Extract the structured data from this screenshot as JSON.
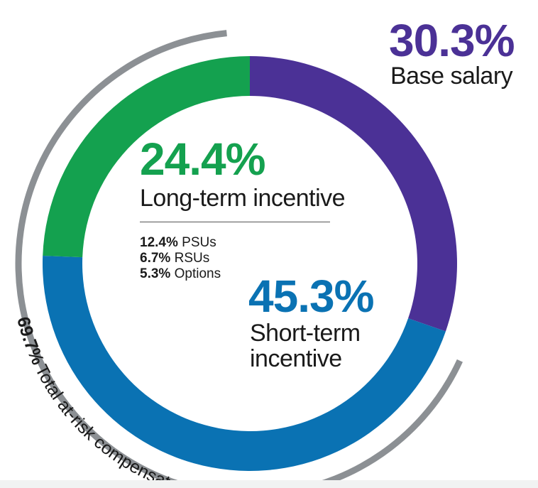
{
  "chart_data": {
    "type": "pie",
    "categories": [
      "Base salary",
      "Short-term incentive",
      "Long-term incentive"
    ],
    "values": [
      30.3,
      45.3,
      24.4
    ],
    "labels": [
      "30.3%",
      "45.3%",
      "24.4%"
    ],
    "colors": [
      "#4b3196",
      "#0a72b3",
      "#14a14f"
    ],
    "long_term_breakdown": [
      {
        "value": "12.4%",
        "label": "PSUs"
      },
      {
        "value": "6.7%",
        "label": "RSUs"
      },
      {
        "value": "5.3%",
        "label": "Options"
      }
    ],
    "total_at_risk": {
      "value": "69.7%",
      "label": "Total at-risk compensation",
      "color": "#8c9094"
    }
  }
}
